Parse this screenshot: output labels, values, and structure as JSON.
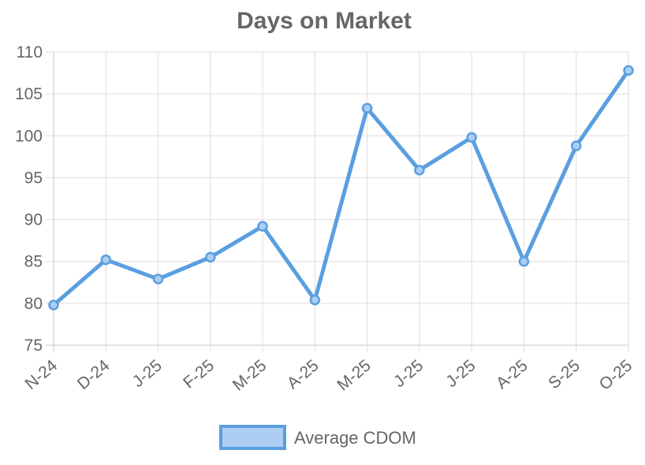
{
  "chart_data": {
    "type": "line",
    "title": "Days on Market",
    "categories": [
      "N-24",
      "D-24",
      "J-25",
      "F-25",
      "M-25",
      "A-25",
      "M-25",
      "J-25",
      "J-25",
      "A-25",
      "S-25",
      "O-25"
    ],
    "series": [
      {
        "name": "Average CDOM",
        "values": [
          79.8,
          85.2,
          82.9,
          85.5,
          89.2,
          80.4,
          103.3,
          95.9,
          99.8,
          85.0,
          98.8,
          107.8
        ],
        "color": "#5a9fe0",
        "fill_color": "#aecdf3"
      }
    ],
    "yticks": [
      75,
      80,
      85,
      90,
      95,
      100,
      105,
      110
    ],
    "ylim": [
      75,
      110
    ],
    "xlabel": "",
    "ylabel": "",
    "grid": true,
    "legend": "bottom"
  }
}
